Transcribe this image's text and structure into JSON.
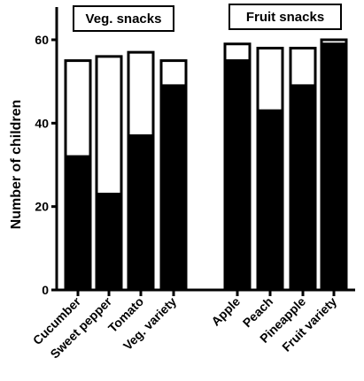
{
  "chart_data": {
    "type": "bar",
    "stacked": true,
    "ylabel": "Number of children",
    "ylim": [
      0,
      65
    ],
    "yticks": [
      0,
      20,
      40,
      60
    ],
    "categories": [
      "Cucumber",
      "Sweet pepper",
      "Tomato",
      "Veg. variety",
      "Apple",
      "Peach",
      "Pineapple",
      "Fruit variety"
    ],
    "groups": [
      {
        "label": "Veg. snacks",
        "categories": [
          "Cucumber",
          "Sweet pepper",
          "Tomato",
          "Veg. variety"
        ]
      },
      {
        "label": "Fruit snacks",
        "categories": [
          "Apple",
          "Peach",
          "Pineapple",
          "Fruit variety"
        ]
      }
    ],
    "series": [
      {
        "values": [
          32,
          23,
          37,
          49,
          55,
          43,
          49,
          59
        ],
        "color": "#000000"
      },
      {
        "values": [
          23,
          33,
          20,
          6,
          4,
          15,
          9,
          1
        ],
        "color": "#ffffff"
      }
    ],
    "totals": [
      55,
      56,
      57,
      55,
      59,
      58,
      58,
      60
    ],
    "grid": false
  }
}
